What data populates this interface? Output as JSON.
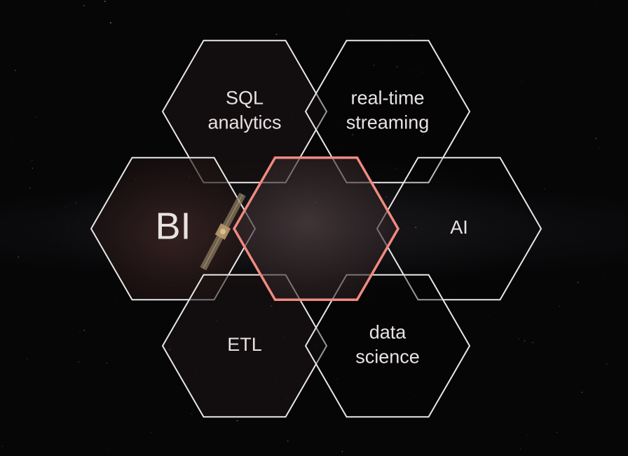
{
  "scene": {
    "accent_color": "#f08a80",
    "outline_color": "#e9e6e6",
    "cells": [
      {
        "id": "sql-analytics",
        "lines": [
          "SQL",
          "analytics"
        ],
        "highlighted": false
      },
      {
        "id": "real-time-streaming",
        "lines": [
          "real-time",
          "streaming"
        ],
        "highlighted": false
      },
      {
        "id": "bi",
        "lines": [
          "BI"
        ],
        "highlighted": false
      },
      {
        "id": "center",
        "lines": [],
        "highlighted": true
      },
      {
        "id": "ai",
        "lines": [
          "AI"
        ],
        "highlighted": false
      },
      {
        "id": "etl",
        "lines": [
          "ETL"
        ],
        "highlighted": false
      },
      {
        "id": "data-science",
        "lines": [
          "data",
          "science"
        ],
        "highlighted": false
      }
    ],
    "illustration": "satellite-icon"
  }
}
